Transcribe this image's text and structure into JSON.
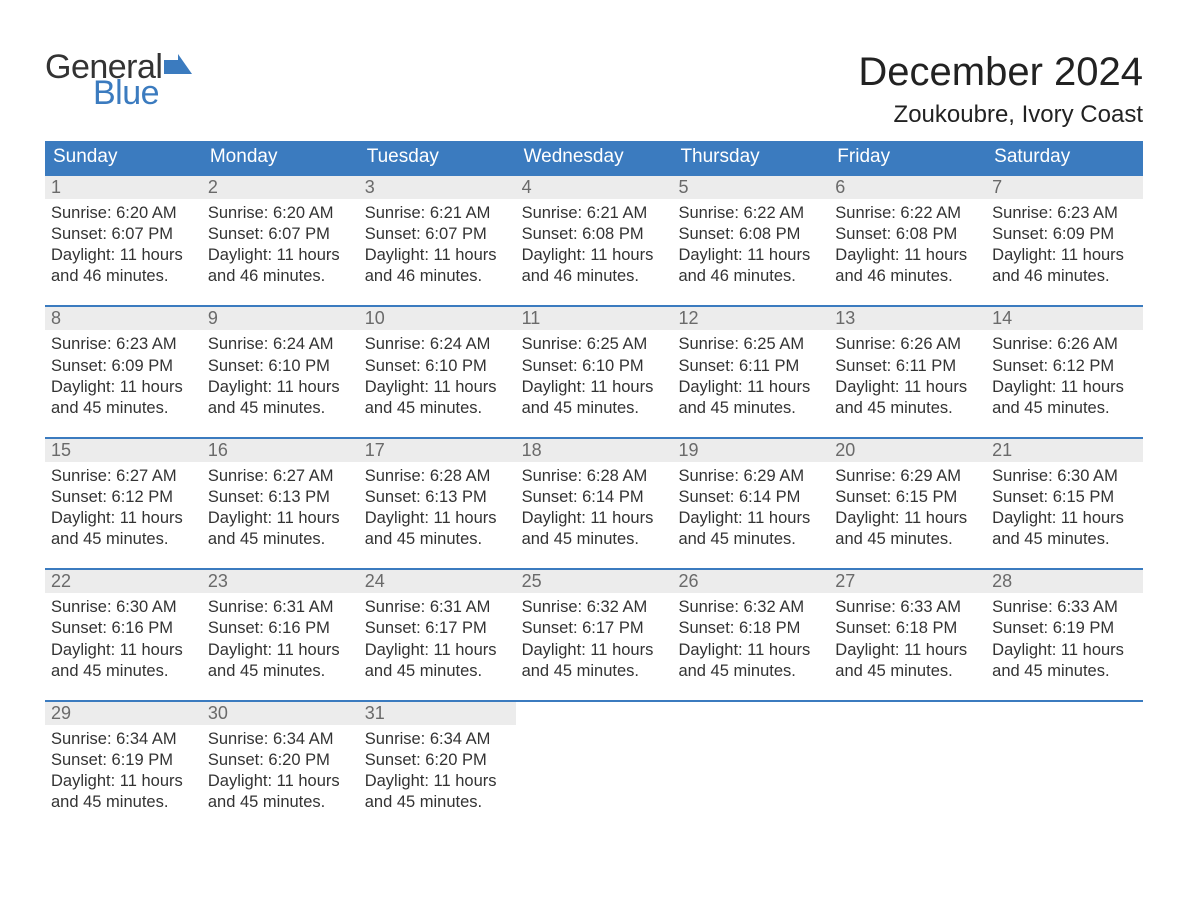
{
  "brand": {
    "word1": "General",
    "word2": "Blue",
    "accent_color": "#3b7bbf"
  },
  "title": "December 2024",
  "location": "Zoukoubre, Ivory Coast",
  "colors": {
    "header_bg": "#3b7bbf",
    "header_text": "#ffffff",
    "daynum_bg": "#ececec",
    "daynum_text": "#6a6a6a",
    "body_text": "#333333",
    "page_bg": "#ffffff",
    "week_border": "#3b7bbf"
  },
  "fonts": {
    "title_size_pt": 40,
    "location_size_pt": 24,
    "dow_size_pt": 19,
    "daynum_size_pt": 18,
    "body_size_pt": 16.5
  },
  "days_of_week": [
    "Sunday",
    "Monday",
    "Tuesday",
    "Wednesday",
    "Thursday",
    "Friday",
    "Saturday"
  ],
  "weeks": [
    [
      {
        "n": "1",
        "sunrise": "Sunrise: 6:20 AM",
        "sunset": "Sunset: 6:07 PM",
        "daylight": "Daylight: 11 hours and 46 minutes."
      },
      {
        "n": "2",
        "sunrise": "Sunrise: 6:20 AM",
        "sunset": "Sunset: 6:07 PM",
        "daylight": "Daylight: 11 hours and 46 minutes."
      },
      {
        "n": "3",
        "sunrise": "Sunrise: 6:21 AM",
        "sunset": "Sunset: 6:07 PM",
        "daylight": "Daylight: 11 hours and 46 minutes."
      },
      {
        "n": "4",
        "sunrise": "Sunrise: 6:21 AM",
        "sunset": "Sunset: 6:08 PM",
        "daylight": "Daylight: 11 hours and 46 minutes."
      },
      {
        "n": "5",
        "sunrise": "Sunrise: 6:22 AM",
        "sunset": "Sunset: 6:08 PM",
        "daylight": "Daylight: 11 hours and 46 minutes."
      },
      {
        "n": "6",
        "sunrise": "Sunrise: 6:22 AM",
        "sunset": "Sunset: 6:08 PM",
        "daylight": "Daylight: 11 hours and 46 minutes."
      },
      {
        "n": "7",
        "sunrise": "Sunrise: 6:23 AM",
        "sunset": "Sunset: 6:09 PM",
        "daylight": "Daylight: 11 hours and 46 minutes."
      }
    ],
    [
      {
        "n": "8",
        "sunrise": "Sunrise: 6:23 AM",
        "sunset": "Sunset: 6:09 PM",
        "daylight": "Daylight: 11 hours and 45 minutes."
      },
      {
        "n": "9",
        "sunrise": "Sunrise: 6:24 AM",
        "sunset": "Sunset: 6:10 PM",
        "daylight": "Daylight: 11 hours and 45 minutes."
      },
      {
        "n": "10",
        "sunrise": "Sunrise: 6:24 AM",
        "sunset": "Sunset: 6:10 PM",
        "daylight": "Daylight: 11 hours and 45 minutes."
      },
      {
        "n": "11",
        "sunrise": "Sunrise: 6:25 AM",
        "sunset": "Sunset: 6:10 PM",
        "daylight": "Daylight: 11 hours and 45 minutes."
      },
      {
        "n": "12",
        "sunrise": "Sunrise: 6:25 AM",
        "sunset": "Sunset: 6:11 PM",
        "daylight": "Daylight: 11 hours and 45 minutes."
      },
      {
        "n": "13",
        "sunrise": "Sunrise: 6:26 AM",
        "sunset": "Sunset: 6:11 PM",
        "daylight": "Daylight: 11 hours and 45 minutes."
      },
      {
        "n": "14",
        "sunrise": "Sunrise: 6:26 AM",
        "sunset": "Sunset: 6:12 PM",
        "daylight": "Daylight: 11 hours and 45 minutes."
      }
    ],
    [
      {
        "n": "15",
        "sunrise": "Sunrise: 6:27 AM",
        "sunset": "Sunset: 6:12 PM",
        "daylight": "Daylight: 11 hours and 45 minutes."
      },
      {
        "n": "16",
        "sunrise": "Sunrise: 6:27 AM",
        "sunset": "Sunset: 6:13 PM",
        "daylight": "Daylight: 11 hours and 45 minutes."
      },
      {
        "n": "17",
        "sunrise": "Sunrise: 6:28 AM",
        "sunset": "Sunset: 6:13 PM",
        "daylight": "Daylight: 11 hours and 45 minutes."
      },
      {
        "n": "18",
        "sunrise": "Sunrise: 6:28 AM",
        "sunset": "Sunset: 6:14 PM",
        "daylight": "Daylight: 11 hours and 45 minutes."
      },
      {
        "n": "19",
        "sunrise": "Sunrise: 6:29 AM",
        "sunset": "Sunset: 6:14 PM",
        "daylight": "Daylight: 11 hours and 45 minutes."
      },
      {
        "n": "20",
        "sunrise": "Sunrise: 6:29 AM",
        "sunset": "Sunset: 6:15 PM",
        "daylight": "Daylight: 11 hours and 45 minutes."
      },
      {
        "n": "21",
        "sunrise": "Sunrise: 6:30 AM",
        "sunset": "Sunset: 6:15 PM",
        "daylight": "Daylight: 11 hours and 45 minutes."
      }
    ],
    [
      {
        "n": "22",
        "sunrise": "Sunrise: 6:30 AM",
        "sunset": "Sunset: 6:16 PM",
        "daylight": "Daylight: 11 hours and 45 minutes."
      },
      {
        "n": "23",
        "sunrise": "Sunrise: 6:31 AM",
        "sunset": "Sunset: 6:16 PM",
        "daylight": "Daylight: 11 hours and 45 minutes."
      },
      {
        "n": "24",
        "sunrise": "Sunrise: 6:31 AM",
        "sunset": "Sunset: 6:17 PM",
        "daylight": "Daylight: 11 hours and 45 minutes."
      },
      {
        "n": "25",
        "sunrise": "Sunrise: 6:32 AM",
        "sunset": "Sunset: 6:17 PM",
        "daylight": "Daylight: 11 hours and 45 minutes."
      },
      {
        "n": "26",
        "sunrise": "Sunrise: 6:32 AM",
        "sunset": "Sunset: 6:18 PM",
        "daylight": "Daylight: 11 hours and 45 minutes."
      },
      {
        "n": "27",
        "sunrise": "Sunrise: 6:33 AM",
        "sunset": "Sunset: 6:18 PM",
        "daylight": "Daylight: 11 hours and 45 minutes."
      },
      {
        "n": "28",
        "sunrise": "Sunrise: 6:33 AM",
        "sunset": "Sunset: 6:19 PM",
        "daylight": "Daylight: 11 hours and 45 minutes."
      }
    ],
    [
      {
        "n": "29",
        "sunrise": "Sunrise: 6:34 AM",
        "sunset": "Sunset: 6:19 PM",
        "daylight": "Daylight: 11 hours and 45 minutes."
      },
      {
        "n": "30",
        "sunrise": "Sunrise: 6:34 AM",
        "sunset": "Sunset: 6:20 PM",
        "daylight": "Daylight: 11 hours and 45 minutes."
      },
      {
        "n": "31",
        "sunrise": "Sunrise: 6:34 AM",
        "sunset": "Sunset: 6:20 PM",
        "daylight": "Daylight: 11 hours and 45 minutes."
      },
      null,
      null,
      null,
      null
    ]
  ]
}
